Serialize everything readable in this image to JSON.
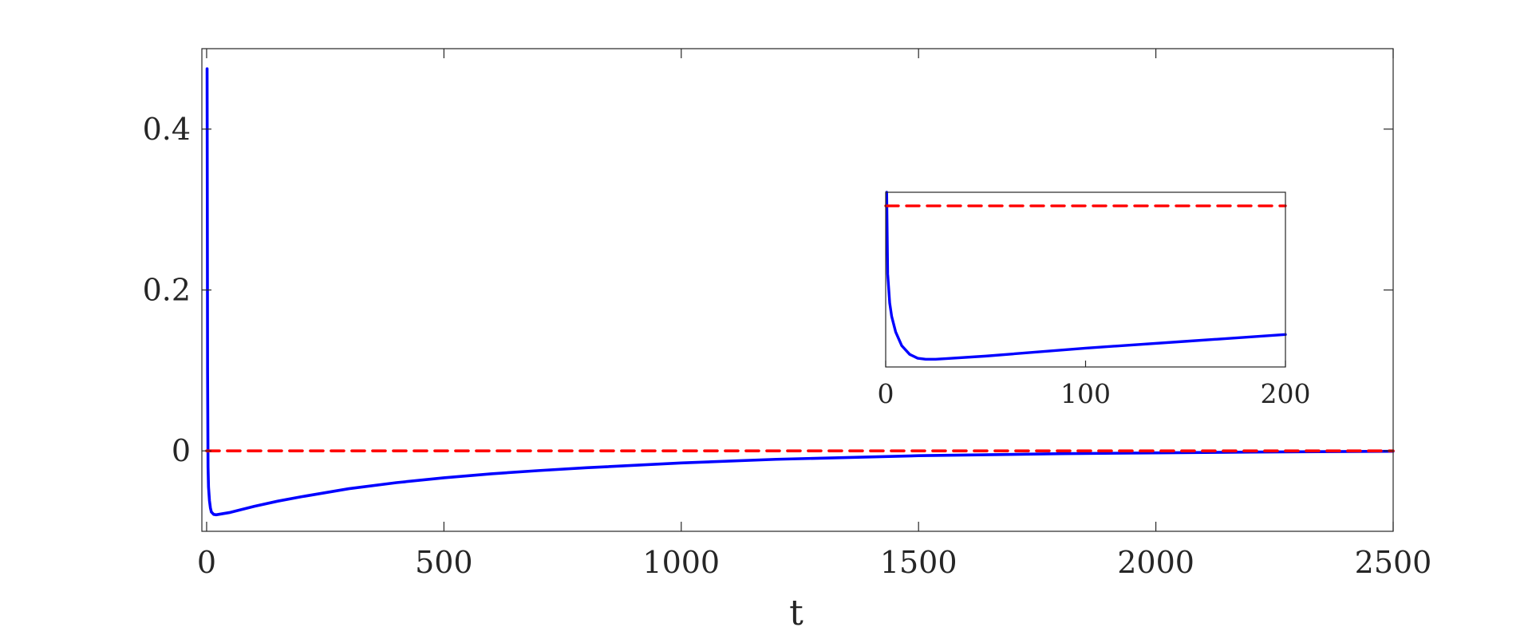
{
  "chart_data": [
    {
      "type": "line",
      "title": "",
      "xlabel": "t",
      "ylabel": "",
      "xlim": [
        -10,
        2500
      ],
      "ylim": [
        -0.1,
        0.5
      ],
      "xticks": [
        0,
        500,
        1000,
        1500,
        2000,
        2500
      ],
      "xtick_labels": [
        "0",
        "500",
        "1000",
        "1500",
        "2000",
        "2500"
      ],
      "yticks": [
        0,
        0.2,
        0.4
      ],
      "ytick_labels": [
        "0",
        "0.2",
        "0.4"
      ],
      "grid": false,
      "series": [
        {
          "color": "#0000ff",
          "style": "solid",
          "x": [
            1,
            2,
            3,
            4,
            6,
            8,
            10,
            15,
            20,
            30,
            50,
            100,
            150,
            200,
            300,
            400,
            500,
            600,
            700,
            800,
            1000,
            1200,
            1500,
            1800,
            2000,
            2200,
            2500
          ],
          "y": [
            0.475,
            0.1,
            -0.02,
            -0.045,
            -0.062,
            -0.071,
            -0.076,
            -0.079,
            -0.0795,
            -0.0785,
            -0.0765,
            -0.069,
            -0.0625,
            -0.057,
            -0.047,
            -0.0395,
            -0.0335,
            -0.0285,
            -0.0245,
            -0.021,
            -0.015,
            -0.0105,
            -0.006,
            -0.0035,
            -0.0025,
            -0.0015,
            -0.0005
          ]
        },
        {
          "color": "#ff0000",
          "style": "dashed",
          "x": [
            0,
            2500
          ],
          "y": [
            0,
            0
          ]
        }
      ]
    },
    {
      "type": "line",
      "title": "",
      "xlabel": "",
      "ylabel": "",
      "xlim": [
        0,
        200
      ],
      "ylim": [
        -0.083,
        0.007
      ],
      "xticks": [
        0,
        100,
        200
      ],
      "xtick_labels": [
        "0",
        "100",
        "200"
      ],
      "grid": false,
      "series": [
        {
          "color": "#0000ff",
          "style": "solid",
          "x": [
            0.5,
            1,
            2,
            3,
            5,
            8,
            12,
            16,
            20,
            25,
            30,
            50,
            100,
            150,
            200
          ],
          "y": [
            0.02,
            -0.035,
            -0.05,
            -0.057,
            -0.065,
            -0.072,
            -0.0765,
            -0.0785,
            -0.079,
            -0.079,
            -0.0787,
            -0.0774,
            -0.0733,
            -0.0698,
            -0.0663
          ]
        },
        {
          "color": "#ff0000",
          "style": "dashed",
          "x": [
            0,
            200
          ],
          "y": [
            0,
            0
          ]
        }
      ]
    }
  ]
}
